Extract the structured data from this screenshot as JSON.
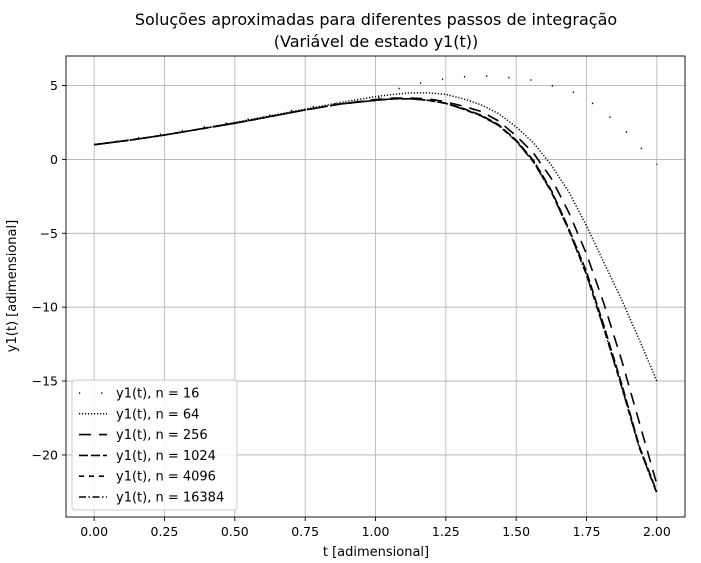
{
  "chart_data": {
    "type": "line",
    "title_line1": "Soluções aproximadas para diferentes passos de integração",
    "title_line2": "(Variável de estado y1(t))",
    "xlabel": "t [adimensional]",
    "ylabel": "y1(t) [adimensional]",
    "xlim": [
      -0.1,
      2.1
    ],
    "ylim": [
      -24.2,
      7.0
    ],
    "xticks": [
      "0.00",
      "0.25",
      "0.50",
      "0.75",
      "1.00",
      "1.25",
      "1.50",
      "1.75",
      "2.00"
    ],
    "xtick_values": [
      0,
      0.25,
      0.5,
      0.75,
      1.0,
      1.25,
      1.5,
      1.75,
      2.0
    ],
    "yticks": [
      "5",
      "0",
      "−5",
      "−10",
      "−15",
      "−20"
    ],
    "ytick_values": [
      5,
      0,
      -5,
      -10,
      -15,
      -20
    ],
    "grid": true,
    "legend_position": "lower-left",
    "line_color": "#000000",
    "series": [
      {
        "name": "y1(t), n = 16",
        "style": "sparse-dot",
        "x": [
          0,
          0.125,
          0.25,
          0.375,
          0.5,
          0.625,
          0.75,
          0.875,
          1.0,
          1.0625,
          1.125,
          1.1875,
          1.25,
          1.3125,
          1.375,
          1.4375,
          1.5,
          1.5625,
          1.625,
          1.6875,
          1.75,
          1.8125,
          1.875,
          1.9375,
          2.0
        ],
        "y": [
          1.0,
          1.35,
          1.75,
          2.15,
          2.55,
          3.0,
          3.5,
          3.8,
          4.05,
          4.7,
          5.0,
          5.3,
          5.45,
          5.6,
          5.65,
          5.6,
          5.5,
          5.35,
          5.0,
          4.7,
          4.1,
          3.2,
          2.2,
          0.9,
          -0.35
        ]
      },
      {
        "name": "y1(t), n = 64",
        "style": "dotted",
        "x": [
          0,
          0.125,
          0.25,
          0.375,
          0.5,
          0.625,
          0.75,
          0.875,
          1.0,
          1.0625,
          1.125,
          1.1875,
          1.25,
          1.3125,
          1.375,
          1.4375,
          1.5,
          1.5625,
          1.625,
          1.6875,
          1.75,
          1.8125,
          1.875,
          1.9375,
          2.0
        ],
        "y": [
          1.0,
          1.3,
          1.65,
          2.05,
          2.5,
          2.95,
          3.4,
          3.85,
          4.25,
          4.4,
          4.5,
          4.5,
          4.4,
          4.1,
          3.7,
          3.1,
          2.2,
          1.1,
          -0.4,
          -2.2,
          -4.5,
          -7.0,
          -9.5,
          -12.2,
          -15.0
        ]
      },
      {
        "name": "y1(t), n = 256",
        "style": "dash-long",
        "x": [
          0,
          0.125,
          0.25,
          0.375,
          0.5,
          0.625,
          0.75,
          0.875,
          1.0,
          1.0625,
          1.125,
          1.1875,
          1.25,
          1.3125,
          1.375,
          1.4375,
          1.5,
          1.5625,
          1.625,
          1.6875,
          1.75,
          1.8125,
          1.875,
          1.9375,
          2.0
        ],
        "y": [
          1.0,
          1.3,
          1.65,
          2.05,
          2.45,
          2.9,
          3.35,
          3.75,
          4.05,
          4.15,
          4.15,
          4.1,
          3.9,
          3.6,
          3.25,
          2.6,
          1.6,
          0.4,
          -1.3,
          -3.6,
          -6.4,
          -9.8,
          -13.6,
          -17.8,
          -22.0
        ]
      },
      {
        "name": "y1(t), n = 1024",
        "style": "dash-med",
        "x": [
          0,
          0.125,
          0.25,
          0.375,
          0.5,
          0.625,
          0.75,
          0.875,
          1.0,
          1.0625,
          1.125,
          1.1875,
          1.25,
          1.3125,
          1.375,
          1.4375,
          1.5,
          1.5625,
          1.625,
          1.6875,
          1.75,
          1.8125,
          1.875,
          1.9375,
          2.0
        ],
        "y": [
          1.0,
          1.3,
          1.65,
          2.05,
          2.45,
          2.9,
          3.35,
          3.75,
          4.0,
          4.1,
          4.1,
          4.0,
          3.8,
          3.45,
          3.0,
          2.35,
          1.3,
          -0.1,
          -2.1,
          -4.7,
          -7.6,
          -11.3,
          -15.2,
          -19.4,
          -22.5
        ]
      },
      {
        "name": "y1(t), n = 4096",
        "style": "dash-short",
        "x": [
          0,
          0.125,
          0.25,
          0.375,
          0.5,
          0.625,
          0.75,
          0.875,
          1.0,
          1.0625,
          1.125,
          1.1875,
          1.25,
          1.3125,
          1.375,
          1.4375,
          1.5,
          1.5625,
          1.625,
          1.6875,
          1.75,
          1.8125,
          1.875,
          1.9375,
          2.0
        ],
        "y": [
          1.0,
          1.3,
          1.65,
          2.05,
          2.45,
          2.9,
          3.35,
          3.75,
          4.0,
          4.1,
          4.1,
          4.0,
          3.8,
          3.4,
          2.95,
          2.3,
          1.25,
          -0.2,
          -2.2,
          -4.8,
          -7.8,
          -11.5,
          -15.4,
          -19.5,
          -22.6
        ]
      },
      {
        "name": "y1(t), n = 16384",
        "style": "dash-dot",
        "x": [
          0,
          0.125,
          0.25,
          0.375,
          0.5,
          0.625,
          0.75,
          0.875,
          1.0,
          1.0625,
          1.125,
          1.1875,
          1.25,
          1.3125,
          1.375,
          1.4375,
          1.5,
          1.5625,
          1.625,
          1.6875,
          1.75,
          1.8125,
          1.875,
          1.9375,
          2.0
        ],
        "y": [
          1.0,
          1.3,
          1.65,
          2.05,
          2.45,
          2.9,
          3.35,
          3.75,
          4.0,
          4.1,
          4.1,
          4.0,
          3.8,
          3.4,
          2.95,
          2.3,
          1.25,
          -0.2,
          -2.2,
          -4.8,
          -7.8,
          -11.5,
          -15.4,
          -19.5,
          -22.6
        ]
      }
    ]
  }
}
